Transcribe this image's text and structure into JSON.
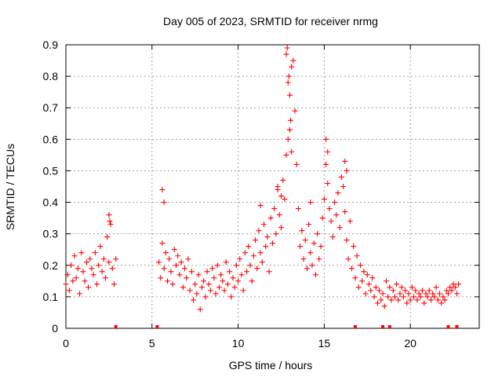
{
  "chart_data": {
    "type": "scatter",
    "title": "Day 005 of 2023, SRMTID for receiver nrmg",
    "xlabel": "GPS time / hours",
    "ylabel": "SRMTID / TECUs",
    "xlim": [
      0,
      24
    ],
    "ylim": [
      0,
      0.9
    ],
    "xticks": [
      0,
      5,
      10,
      15,
      20
    ],
    "xtick_labels": [
      "0",
      "5",
      "10",
      "15",
      "20"
    ],
    "yticks": [
      0,
      0.1,
      0.2,
      0.3,
      0.4,
      0.5,
      0.6,
      0.7,
      0.8,
      0.9
    ],
    "ytick_labels": [
      "0",
      "0.1",
      "0.2",
      "0.3",
      "0.4",
      "0.5",
      "0.6",
      "0.7",
      "0.8",
      "0.9"
    ],
    "grid": true,
    "marker": "+",
    "marker_color": "#ff0000",
    "series": [
      {
        "name": "SRMTID",
        "x": [
          0.0,
          0.1,
          0.2,
          0.3,
          0.4,
          0.5,
          0.6,
          0.7,
          0.8,
          0.9,
          1.0,
          1.1,
          1.2,
          1.3,
          1.4,
          1.5,
          1.6,
          1.7,
          1.8,
          1.9,
          2.0,
          2.1,
          2.2,
          2.3,
          2.4,
          2.5,
          2.6,
          2.7,
          2.8,
          2.9,
          5.4,
          5.5,
          5.6,
          5.7,
          5.8,
          5.9,
          6.0,
          6.1,
          6.2,
          6.3,
          6.4,
          6.5,
          6.6,
          6.7,
          6.8,
          6.9,
          7.0,
          7.1,
          7.2,
          7.3,
          7.4,
          7.5,
          7.6,
          7.7,
          7.8,
          7.9,
          8.0,
          8.1,
          8.2,
          8.3,
          8.4,
          8.5,
          8.6,
          8.7,
          8.8,
          8.9,
          9.0,
          9.1,
          9.2,
          9.3,
          9.4,
          9.5,
          9.6,
          9.7,
          9.8,
          9.9,
          10.0,
          10.1,
          10.2,
          10.3,
          10.4,
          10.5,
          10.6,
          10.7,
          10.8,
          10.9,
          11.0,
          11.1,
          11.2,
          11.3,
          11.4,
          11.5,
          11.6,
          11.7,
          11.8,
          11.9,
          12.0,
          12.1,
          12.2,
          12.3,
          12.4,
          12.5,
          12.6,
          12.7,
          12.8,
          12.9,
          13.0,
          13.1,
          13.2,
          13.3,
          13.4,
          13.5,
          13.6,
          13.7,
          13.8,
          13.9,
          14.0,
          14.1,
          14.2,
          14.3,
          14.4,
          14.5,
          14.6,
          14.7,
          14.8,
          14.9,
          15.0,
          15.1,
          15.2,
          15.3,
          15.4,
          15.5,
          15.6,
          15.7,
          15.8,
          15.9,
          16.0,
          16.1,
          16.2,
          16.3,
          16.4,
          16.5,
          16.6,
          16.7,
          16.8,
          16.9,
          17.0,
          17.1,
          17.2,
          17.3,
          17.4,
          17.5,
          17.6,
          17.7,
          17.8,
          17.9,
          18.0,
          18.1,
          18.2,
          18.3,
          18.4,
          18.5,
          18.6,
          18.7,
          18.8,
          18.9,
          19.0,
          19.1,
          19.2,
          19.3,
          19.4,
          19.5,
          19.6,
          19.7,
          19.8,
          19.9,
          20.0,
          20.1,
          20.2,
          20.3,
          20.4,
          20.5,
          20.6,
          20.7,
          20.8,
          20.9,
          21.0,
          21.1,
          21.2,
          21.3,
          21.4,
          21.5,
          21.6,
          21.7,
          21.8,
          21.9,
          22.0,
          22.1,
          22.2,
          22.3,
          22.4,
          22.5,
          22.6,
          22.7,
          22.8,
          12.85,
          12.95,
          13.05,
          12.8,
          12.9,
          13.0,
          13.1,
          15.1,
          15.2,
          16.2,
          16.3,
          5.6,
          5.7,
          2.5,
          2.55,
          11.3,
          12.3,
          12.5,
          14.2
        ],
        "y": [
          0.14,
          0.17,
          0.12,
          0.2,
          0.15,
          0.23,
          0.16,
          0.19,
          0.11,
          0.24,
          0.18,
          0.15,
          0.21,
          0.13,
          0.22,
          0.19,
          0.17,
          0.24,
          0.14,
          0.2,
          0.26,
          0.18,
          0.22,
          0.16,
          0.29,
          0.21,
          0.33,
          0.19,
          0.14,
          0.22,
          0.21,
          0.16,
          0.27,
          0.19,
          0.24,
          0.15,
          0.22,
          0.18,
          0.14,
          0.25,
          0.2,
          0.23,
          0.17,
          0.21,
          0.13,
          0.19,
          0.16,
          0.22,
          0.12,
          0.18,
          0.09,
          0.14,
          0.11,
          0.17,
          0.06,
          0.13,
          0.15,
          0.1,
          0.18,
          0.14,
          0.12,
          0.19,
          0.16,
          0.11,
          0.2,
          0.13,
          0.17,
          0.15,
          0.12,
          0.21,
          0.14,
          0.18,
          0.1,
          0.16,
          0.13,
          0.2,
          0.15,
          0.22,
          0.17,
          0.12,
          0.24,
          0.18,
          0.26,
          0.2,
          0.15,
          0.23,
          0.28,
          0.19,
          0.31,
          0.24,
          0.21,
          0.33,
          0.26,
          0.29,
          0.18,
          0.35,
          0.27,
          0.38,
          0.3,
          0.44,
          0.36,
          0.32,
          0.47,
          0.41,
          0.55,
          0.6,
          0.74,
          0.83,
          0.85,
          0.69,
          0.52,
          0.38,
          0.26,
          0.31,
          0.22,
          0.28,
          0.19,
          0.33,
          0.24,
          0.2,
          0.27,
          0.17,
          0.3,
          0.22,
          0.26,
          0.35,
          0.41,
          0.52,
          0.46,
          0.38,
          0.34,
          0.29,
          0.4,
          0.36,
          0.43,
          0.32,
          0.48,
          0.45,
          0.37,
          0.28,
          0.22,
          0.34,
          0.19,
          0.26,
          0.16,
          0.23,
          0.13,
          0.2,
          0.15,
          0.18,
          0.11,
          0.17,
          0.14,
          0.12,
          0.16,
          0.1,
          0.13,
          0.08,
          0.12,
          0.09,
          0.11,
          0.07,
          0.15,
          0.1,
          0.13,
          0.09,
          0.12,
          0.1,
          0.14,
          0.09,
          0.11,
          0.13,
          0.1,
          0.12,
          0.08,
          0.11,
          0.09,
          0.13,
          0.1,
          0.12,
          0.09,
          0.11,
          0.1,
          0.12,
          0.08,
          0.11,
          0.1,
          0.12,
          0.09,
          0.11,
          0.1,
          0.13,
          0.09,
          0.11,
          0.08,
          0.1,
          0.09,
          0.12,
          0.11,
          0.13,
          0.12,
          0.14,
          0.13,
          0.11,
          0.14,
          0.89,
          0.8,
          0.66,
          0.87,
          0.78,
          0.63,
          0.56,
          0.6,
          0.56,
          0.53,
          0.5,
          0.44,
          0.4,
          0.36,
          0.34,
          0.39,
          0.45,
          0.42,
          0.4
        ]
      }
    ],
    "gap_markers_x": [
      2.9,
      5.3,
      16.8,
      18.4,
      18.8,
      22.2,
      22.7
    ]
  }
}
